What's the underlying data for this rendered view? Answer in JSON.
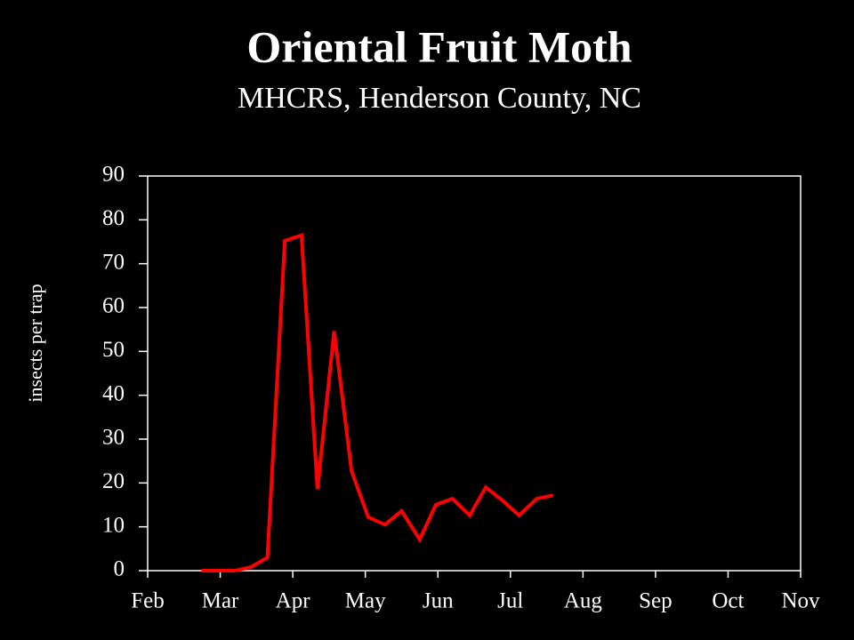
{
  "chart_data": {
    "type": "line",
    "title": "Oriental Fruit Moth",
    "subtitle": "MHCRS, Henderson County, NC",
    "y_label": "insects per trap",
    "xlim": [
      0,
      9
    ],
    "xticks": [
      {
        "value": 0,
        "label": "Feb"
      },
      {
        "value": 1,
        "label": "Mar"
      },
      {
        "value": 2,
        "label": "Apr"
      },
      {
        "value": 3,
        "label": "May"
      },
      {
        "value": 4,
        "label": "Jun"
      },
      {
        "value": 5,
        "label": "Jul"
      },
      {
        "value": 6,
        "label": "Aug"
      },
      {
        "value": 7,
        "label": "Sep"
      },
      {
        "value": 8,
        "label": "Oct"
      },
      {
        "value": 9,
        "label": "Nov"
      }
    ],
    "ylim": [
      0,
      90
    ],
    "yticks": [
      0,
      10,
      20,
      30,
      40,
      50,
      60,
      70,
      80,
      90
    ],
    "grid": false,
    "x": [
      0.74,
      0.97,
      1.2,
      1.42,
      1.65,
      1.89,
      2.12,
      2.34,
      2.57,
      2.81,
      3.04,
      3.27,
      3.5,
      3.75,
      3.97,
      4.2,
      4.44,
      4.66,
      4.89,
      5.12,
      5.36,
      5.59
    ],
    "series": [
      {
        "color": "#ff0000",
        "values": [
          0,
          0,
          0,
          0.8,
          3,
          75.2,
          76.5,
          18.6,
          54.6,
          22.7,
          12.2,
          10.5,
          13.6,
          7.1,
          15,
          16.4,
          12.6,
          19,
          16,
          12.6,
          16.4,
          17.2
        ]
      }
    ]
  }
}
